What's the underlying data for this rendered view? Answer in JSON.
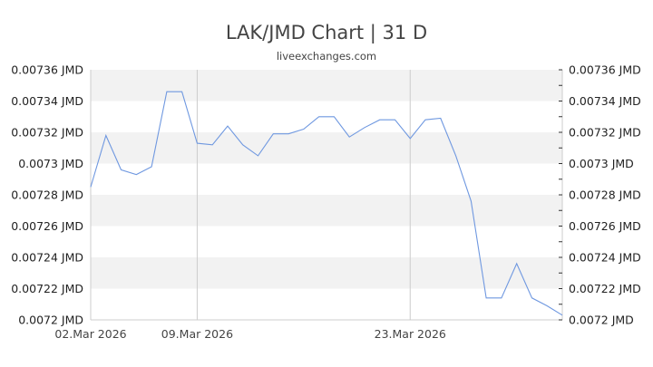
{
  "header": {
    "title": "LAK/JMD Chart | 31 D",
    "subtitle": "liveexchanges.com"
  },
  "colors": {
    "line": "#6f98e0",
    "band": "#f2f2f2",
    "grid": "#cccccc",
    "text": "#444444"
  },
  "chart_data": {
    "type": "line",
    "title": "LAK/JMD Chart | 31 D",
    "subtitle": "liveexchanges.com",
    "xlabel": "",
    "ylabel": "",
    "ylim": [
      0.0072,
      0.00736
    ],
    "y_ticks": [
      "0.00736 JMD",
      "0.00734 JMD",
      "0.00732 JMD",
      "0.0073 JMD",
      "0.00728 JMD",
      "0.00726 JMD",
      "0.00724 JMD",
      "0.00722 JMD",
      "0.0072 JMD"
    ],
    "y_tick_values": [
      0.00736,
      0.00734,
      0.00732,
      0.0073,
      0.00728,
      0.00726,
      0.00724,
      0.00722,
      0.0072
    ],
    "x_ticks": [
      {
        "label": "02.Mar 2026",
        "index": 0
      },
      {
        "label": "09.Mar 2026",
        "index": 7
      },
      {
        "label": "23.Mar 2026",
        "index": 21
      }
    ],
    "grid": true,
    "legend": "none",
    "series": [
      {
        "name": "LAK/JMD",
        "values": [
          0.007285,
          0.007318,
          0.007296,
          0.007293,
          0.007298,
          0.007346,
          0.007346,
          0.007313,
          0.007312,
          0.007324,
          0.007312,
          0.007305,
          0.007319,
          0.007319,
          0.007322,
          0.00733,
          0.00733,
          0.007317,
          0.007323,
          0.007328,
          0.007328,
          0.007316,
          0.007328,
          0.007329,
          0.007305,
          0.007276,
          0.007214,
          0.007214,
          0.007236,
          0.007214,
          0.007209,
          0.007203
        ]
      }
    ]
  }
}
